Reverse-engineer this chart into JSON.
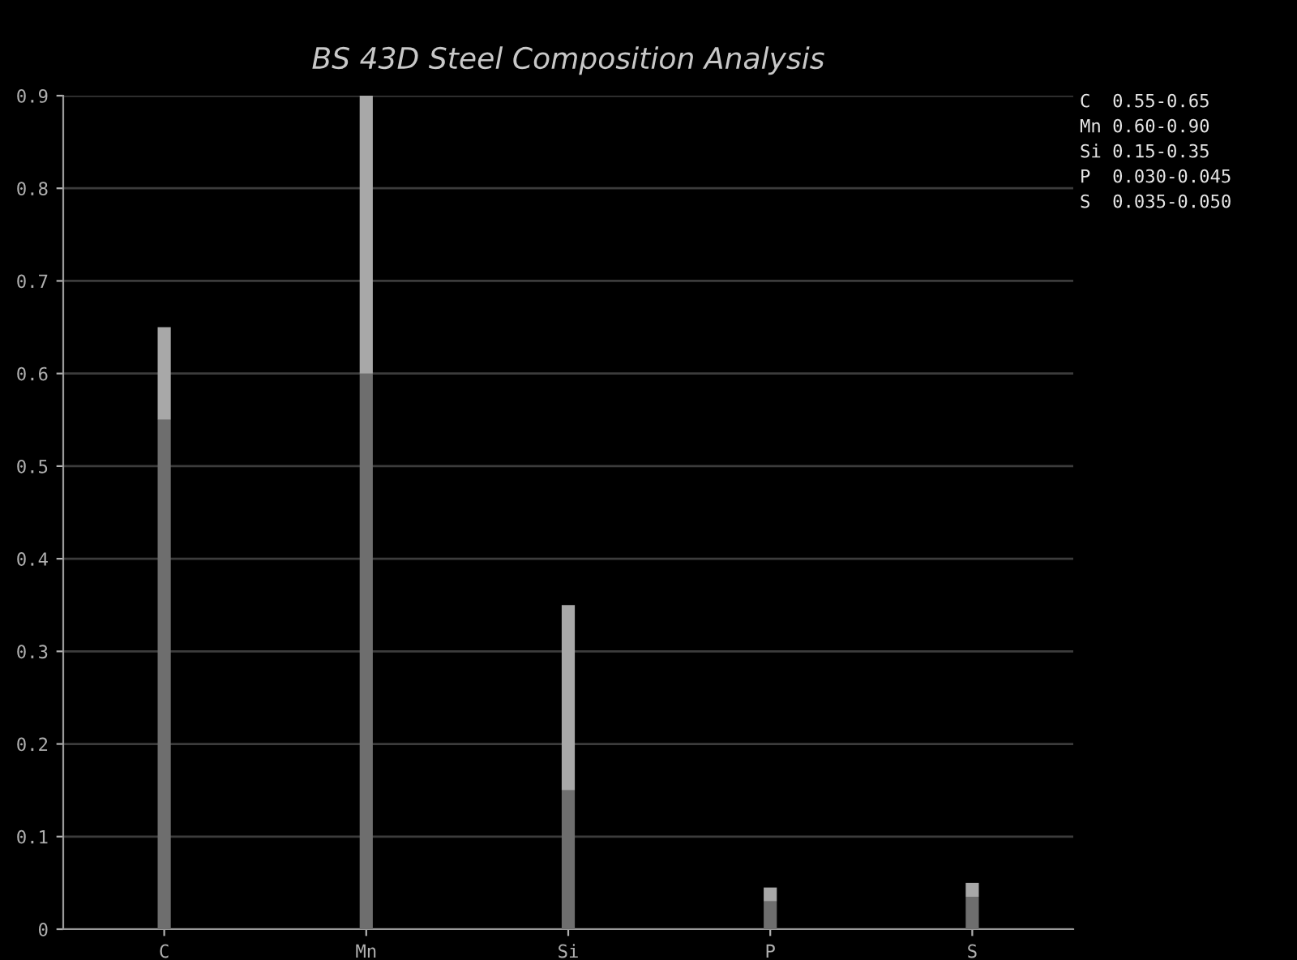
{
  "chart_data": {
    "type": "bar",
    "title": "BS 43D Steel Composition Analysis",
    "categories": [
      "C",
      "Mn",
      "Si",
      "P",
      "S"
    ],
    "stacked": true,
    "series": [
      {
        "color": "#6e6e6e",
        "values": [
          0.55,
          0.6,
          0.15,
          0.03,
          0.035
        ]
      },
      {
        "color": "#a8a8a8",
        "values": [
          0.1,
          0.3,
          0.2,
          0.015,
          0.015
        ]
      }
    ],
    "ylim": [
      0,
      0.9
    ],
    "yticks": [
      0,
      0.1,
      0.2,
      0.3,
      0.4,
      0.5,
      0.6,
      0.7,
      0.8,
      0.9
    ],
    "grid": "y",
    "annotations": [
      "C  0.55-0.65",
      "Mn 0.60-0.90",
      "Si 0.15-0.35",
      "P  0.030-0.045",
      "S  0.035-0.050"
    ]
  }
}
